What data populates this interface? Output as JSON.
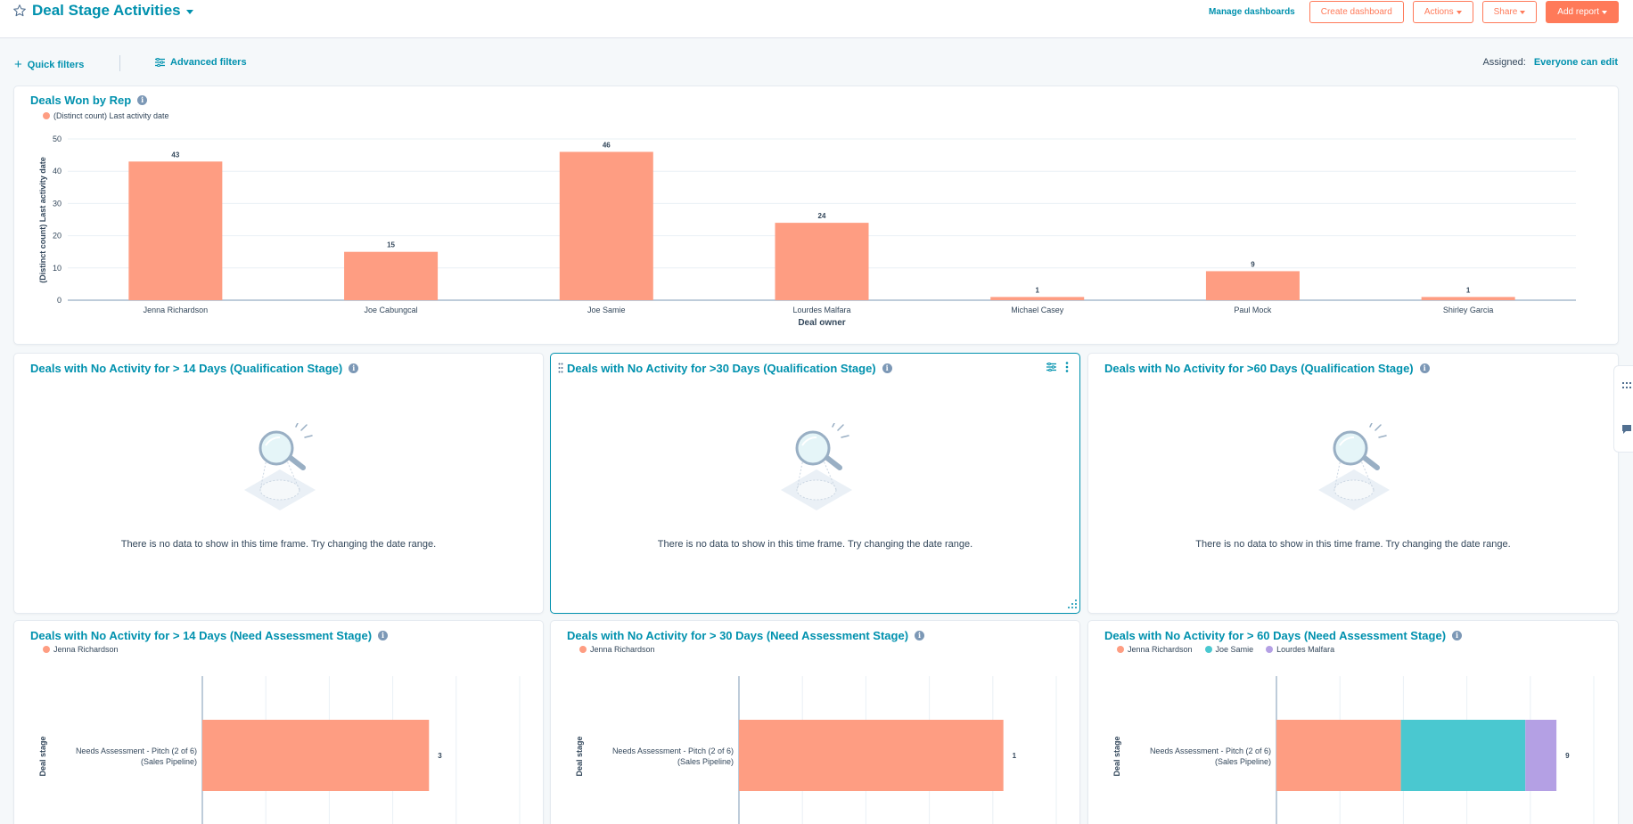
{
  "header": {
    "title": "Deal Stage Activities",
    "manage_dashboards": "Manage dashboards",
    "create_dashboard": "Create dashboard",
    "actions": "Actions",
    "share": "Share",
    "add_report": "Add report"
  },
  "filters": {
    "quick": "Quick filters",
    "advanced": "Advanced filters",
    "assigned_label": "Assigned:",
    "assigned_value": "Everyone can edit"
  },
  "colors": {
    "accent": "#0091ae",
    "orange": "#ff7a59",
    "bar_salmon": "#fe9d82",
    "teal": "#4ac8d0",
    "purple": "#b4a0e4"
  },
  "reports": {
    "won_by_rep": {
      "title": "Deals Won by Rep"
    },
    "q14": {
      "title": "Deals with No Activity for > 14 Days (Qualification Stage)",
      "empty": "There is no data to show in this time frame. Try changing the date range."
    },
    "q30": {
      "title": "Deals with No Activity for >30 Days (Qualification Stage)",
      "empty": "There is no data to show in this time frame. Try changing the date range."
    },
    "q60": {
      "title": "Deals with No Activity for >60 Days (Qualification Stage)",
      "empty": "There is no data to show in this time frame. Try changing the date range."
    },
    "na14": {
      "title": "Deals with No Activity for > 14 Days (Need Assessment Stage)"
    },
    "na30": {
      "title": "Deals with No Activity for > 30 Days (Need Assessment Stage)"
    },
    "na60": {
      "title": "Deals with No Activity for > 60 Days (Need Assessment Stage)"
    }
  },
  "chart_data": [
    {
      "id": "won_by_rep",
      "type": "bar",
      "legend": [
        "(Distinct count) Last activity date"
      ],
      "categories": [
        "Jenna Richardson",
        "Joe Cabungcal",
        "Joe Samie",
        "Lourdes Malfara",
        "Michael Casey",
        "Paul Mock",
        "Shirley Garcia"
      ],
      "series": [
        {
          "name": "(Distinct count) Last activity date",
          "values": [
            43,
            15,
            46,
            24,
            1,
            9,
            1
          ]
        }
      ],
      "xlabel": "Deal owner",
      "ylabel": "(Distinct count) Last activity date",
      "yticks": [
        0,
        10,
        20,
        30,
        40,
        50
      ],
      "ylim": [
        0,
        50
      ],
      "grid": true
    },
    {
      "id": "na14",
      "type": "bar",
      "orientation": "horizontal",
      "categories": [
        "Needs Assessment - Pitch (2 of 6) (Sales Pipeline)"
      ],
      "series": [
        {
          "name": "Jenna Richardson",
          "values": [
            3
          ]
        }
      ],
      "totals": [
        3
      ],
      "ylabel": "Deal stage",
      "xlim": [
        0,
        4.2
      ],
      "grid": true
    },
    {
      "id": "na30",
      "type": "bar",
      "orientation": "horizontal",
      "categories": [
        "Needs Assessment - Pitch (2 of 6) (Sales Pipeline)"
      ],
      "series": [
        {
          "name": "Jenna Richardson",
          "values": [
            1
          ]
        }
      ],
      "totals": [
        1
      ],
      "ylabel": "Deal stage",
      "xlim": [
        0,
        1.2
      ],
      "grid": true
    },
    {
      "id": "na60",
      "type": "bar",
      "orientation": "horizontal",
      "stacked": true,
      "categories": [
        "Needs Assessment - Pitch (2 of 6) (Sales Pipeline)"
      ],
      "series": [
        {
          "name": "Jenna Richardson",
          "values": [
            4
          ]
        },
        {
          "name": "Joe Samie",
          "values": [
            4
          ]
        },
        {
          "name": "Lourdes Malfara",
          "values": [
            1
          ]
        }
      ],
      "totals": [
        9
      ],
      "ylabel": "Deal stage",
      "xlim": [
        0,
        10.2
      ],
      "grid": true
    }
  ]
}
